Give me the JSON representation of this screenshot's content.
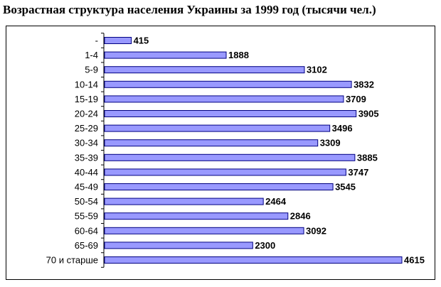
{
  "chart_data": {
    "type": "bar",
    "orientation": "horizontal",
    "title": "Возрастная структура населения Украины за 1999 год (тысячи чел.)",
    "categories": [
      "-",
      "1-4",
      "5-9",
      "10-14",
      "15-19",
      "20-24",
      "25-29",
      "30-34",
      "35-39",
      "40-44",
      "45-49",
      "50-54",
      "55-59",
      "60-64",
      "65-69",
      "70 и старше"
    ],
    "values": [
      415,
      1888,
      3102,
      3832,
      3709,
      3905,
      3496,
      3309,
      3885,
      3747,
      3545,
      2464,
      2846,
      3092,
      2300,
      4615
    ],
    "xlim": [
      0,
      4615
    ],
    "grid": false,
    "legend": "none",
    "colors": {
      "bar_fill": "#9999ff",
      "bar_edge": "#000080"
    }
  }
}
